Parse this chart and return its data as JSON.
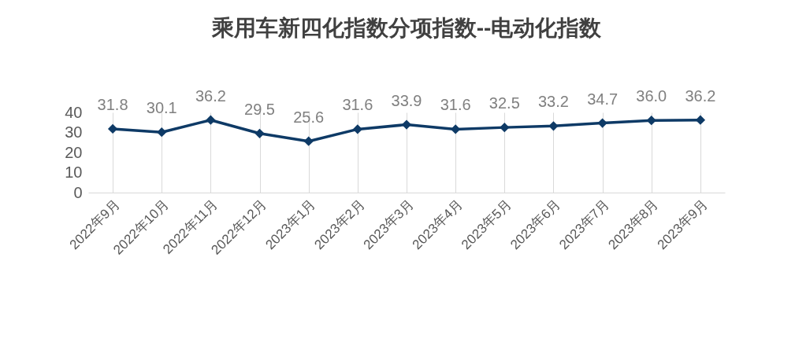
{
  "chart_data": {
    "type": "line",
    "title": "乘用车新四化指数分项指数--电动化指数",
    "categories": [
      "2022年9月",
      "2022年10月",
      "2022年11月",
      "2022年12月",
      "2023年1月",
      "2023年2月",
      "2023年3月",
      "2023年4月",
      "2023年5月",
      "2023年6月",
      "2023年7月",
      "2023年8月",
      "2023年9月"
    ],
    "series": [
      {
        "color": "#0e3a66",
        "values": [
          31.8,
          30.1,
          36.2,
          29.5,
          25.6,
          31.6,
          33.9,
          31.6,
          32.5,
          33.2,
          34.7,
          36.0,
          36.2
        ],
        "value_labels": [
          "31.8",
          "30.1",
          "36.2",
          "29.5",
          "25.6",
          "31.6",
          "33.9",
          "31.6",
          "32.5",
          "33.2",
          "34.7",
          "36.0",
          "36.2"
        ]
      }
    ],
    "ylim": [
      0,
      40
    ],
    "yticks": [
      0,
      10,
      20,
      30,
      40
    ],
    "grid": "x",
    "marker": "diamond"
  }
}
